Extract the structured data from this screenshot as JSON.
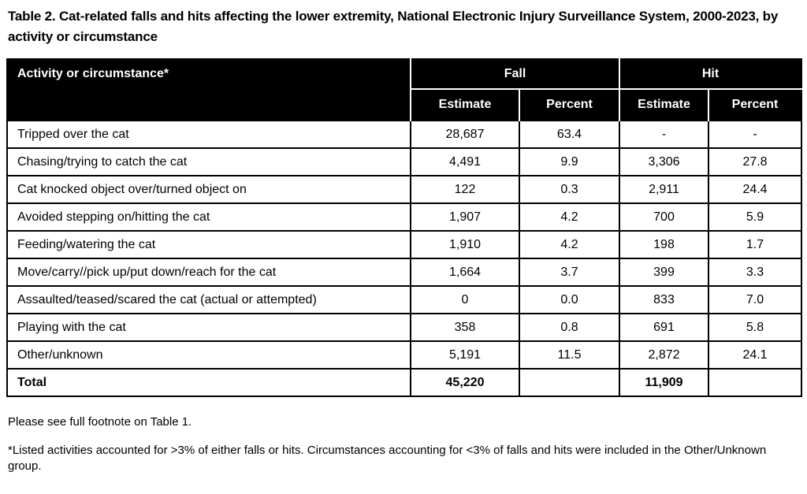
{
  "title": "Table 2. Cat-related falls and hits affecting the lower extremity, National Electronic Injury Surveillance System, 2000-2023, by activity or circumstance",
  "table": {
    "activity_header": "Activity or circumstance*",
    "group_headers": {
      "fall": "Fall",
      "hit": "Hit"
    },
    "sub_headers": [
      "Estimate",
      "Percent",
      "Estimate",
      "Percent"
    ],
    "rows": [
      [
        "Tripped over the cat",
        "28,687",
        "63.4",
        "-",
        "-"
      ],
      [
        "Chasing/trying to catch the cat",
        "4,491",
        "9.9",
        "3,306",
        "27.8"
      ],
      [
        "Cat knocked object over/turned object on",
        "122",
        "0.3",
        "2,911",
        "24.4"
      ],
      [
        "Avoided stepping on/hitting the cat",
        "1,907",
        "4.2",
        "700",
        "5.9"
      ],
      [
        "Feeding/watering the cat",
        "1,910",
        "4.2",
        "198",
        "1.7"
      ],
      [
        "Move/carry//pick up/put down/reach for the cat",
        "1,664",
        "3.7",
        "399",
        "3.3"
      ],
      [
        "Assaulted/teased/scared the cat (actual or attempted)",
        "0",
        "0.0",
        "833",
        "7.0"
      ],
      [
        "Playing with the cat",
        "358",
        "0.8",
        "691",
        "5.8"
      ],
      [
        "Other/unknown",
        "5,191",
        "11.5",
        "2,872",
        "24.1"
      ]
    ],
    "total_row": [
      "Total",
      "45,220",
      "",
      "11,909",
      ""
    ]
  },
  "footnotes": [
    "Please see full footnote on Table 1.",
    "*Listed activities accounted for >3% of either falls or hits. Circumstances accounting for <3% of falls and hits were included in the Other/Unknown group."
  ]
}
